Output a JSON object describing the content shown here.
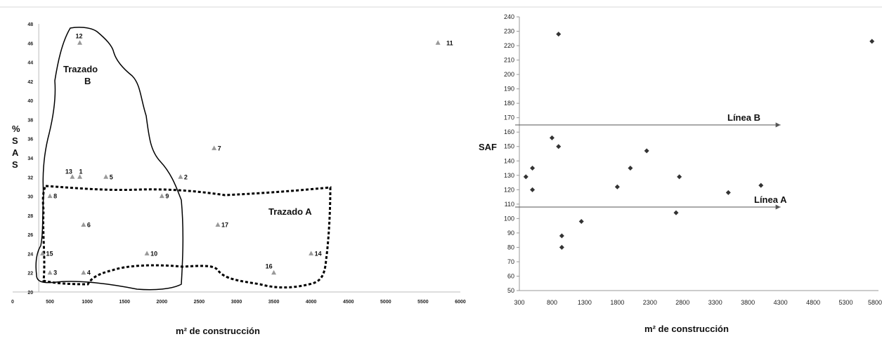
{
  "chart_data": [
    {
      "type": "scatter",
      "title": "",
      "xlabel": "m² de construcción",
      "ylabel_lines": [
        "%",
        "S",
        "A",
        "S"
      ],
      "xlim": [
        0,
        6000
      ],
      "ylim": [
        20,
        48
      ],
      "x_ticks": [
        0,
        500,
        1000,
        1500,
        2000,
        2500,
        3000,
        3500,
        4000,
        4500,
        5000,
        5500,
        6000
      ],
      "y_ticks": [
        20,
        22,
        24,
        26,
        28,
        30,
        32,
        34,
        36,
        38,
        40,
        42,
        44,
        46,
        48
      ],
      "marker": "triangle",
      "marker_color": "#999999",
      "points": [
        {
          "label": "12",
          "x": 900,
          "y": 46
        },
        {
          "label": "11",
          "x": 5700,
          "y": 46
        },
        {
          "label": "7",
          "x": 2700,
          "y": 35
        },
        {
          "label": "13",
          "x": 800,
          "y": 32
        },
        {
          "label": "1",
          "x": 900,
          "y": 32
        },
        {
          "label": "5",
          "x": 1250,
          "y": 32
        },
        {
          "label": "2",
          "x": 2250,
          "y": 32
        },
        {
          "label": "8",
          "x": 500,
          "y": 30
        },
        {
          "label": "9",
          "x": 2000,
          "y": 30
        },
        {
          "label": "6",
          "x": 950,
          "y": 27
        },
        {
          "label": "17",
          "x": 2750,
          "y": 27
        },
        {
          "label": "15",
          "x": 400,
          "y": 24
        },
        {
          "label": "10",
          "x": 1800,
          "y": 24
        },
        {
          "label": "14",
          "x": 4000,
          "y": 24
        },
        {
          "label": "3",
          "x": 500,
          "y": 22
        },
        {
          "label": "4",
          "x": 950,
          "y": 22
        },
        {
          "label": "16",
          "x": 3500,
          "y": 22
        }
      ],
      "annotations": {
        "region_b_line1": "Trazado",
        "region_b_line2": "B",
        "region_a": "Trazado A"
      }
    },
    {
      "type": "scatter",
      "title": "",
      "xlabel": "m² de construcción",
      "ylabel": "SAF",
      "xlim": [
        300,
        5800
      ],
      "ylim": [
        50,
        240
      ],
      "x_ticks": [
        300,
        800,
        1300,
        1800,
        2300,
        2800,
        3300,
        3800,
        4300,
        4800,
        5300,
        5800
      ],
      "y_ticks": [
        50,
        60,
        70,
        80,
        90,
        100,
        110,
        120,
        130,
        140,
        150,
        160,
        170,
        180,
        190,
        200,
        210,
        220,
        230,
        240
      ],
      "marker": "diamond",
      "marker_color": "#333333",
      "points": [
        {
          "x": 400,
          "y": 129
        },
        {
          "x": 500,
          "y": 135
        },
        {
          "x": 500,
          "y": 120
        },
        {
          "x": 800,
          "y": 156
        },
        {
          "x": 900,
          "y": 150
        },
        {
          "x": 900,
          "y": 228
        },
        {
          "x": 950,
          "y": 88
        },
        {
          "x": 950,
          "y": 80
        },
        {
          "x": 1250,
          "y": 98
        },
        {
          "x": 1800,
          "y": 122
        },
        {
          "x": 2000,
          "y": 135
        },
        {
          "x": 2250,
          "y": 147
        },
        {
          "x": 2700,
          "y": 104
        },
        {
          "x": 2750,
          "y": 129
        },
        {
          "x": 3500,
          "y": 118
        },
        {
          "x": 4000,
          "y": 123
        },
        {
          "x": 5700,
          "y": 223
        }
      ],
      "reference_lines": [
        {
          "label": "Línea B",
          "y": 165,
          "x_end": 4300
        },
        {
          "label": "Línea A",
          "y": 108,
          "x_end": 4300
        }
      ]
    }
  ]
}
